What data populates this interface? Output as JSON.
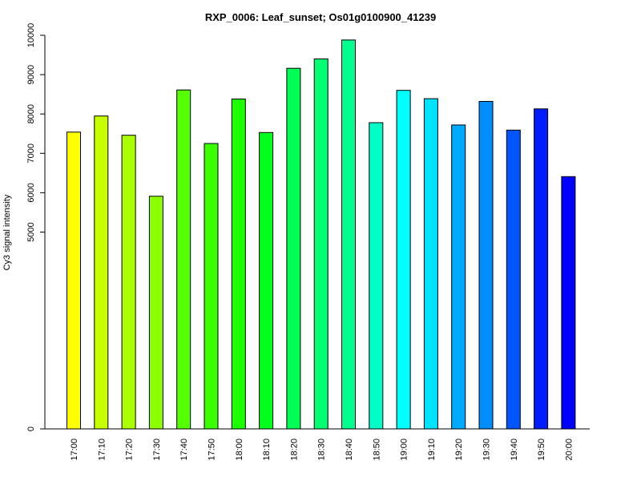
{
  "chart_data": {
    "type": "bar",
    "title": "RXP_0006: Leaf_sunset; Os01g0100900_41239",
    "xlabel": "",
    "ylabel": "Cy3 signal intensity",
    "ylim": [
      0,
      10000
    ],
    "y_ticks": [
      "0",
      "5000",
      "6000",
      "7000",
      "8000",
      "9000",
      "10000"
    ],
    "categories": [
      "17:00",
      "17:10",
      "17:20",
      "17:30",
      "17:40",
      "17:50",
      "18:00",
      "18:10",
      "18:20",
      "18:30",
      "18:40",
      "18:50",
      "19:00",
      "19:10",
      "19:20",
      "19:30",
      "19:40",
      "19:50",
      "20:00"
    ],
    "values": [
      7540,
      7950,
      7460,
      5910,
      8610,
      7250,
      8380,
      7530,
      9160,
      9400,
      9880,
      7780,
      8600,
      8390,
      7720,
      8320,
      7590,
      8130,
      6410
    ],
    "colors": [
      "#ffff00",
      "#c6ff00",
      "#aaff00",
      "#8eff00",
      "#55ff00",
      "#39ff00",
      "#1cff00",
      "#00ff1c",
      "#00ff55",
      "#00ff71",
      "#00ff8e",
      "#00ffc6",
      "#00ffff",
      "#00e3ff",
      "#00aaff",
      "#008eff",
      "#0055ff",
      "#001cff",
      "#0000ff"
    ],
    "grid": false,
    "legend": "none"
  }
}
